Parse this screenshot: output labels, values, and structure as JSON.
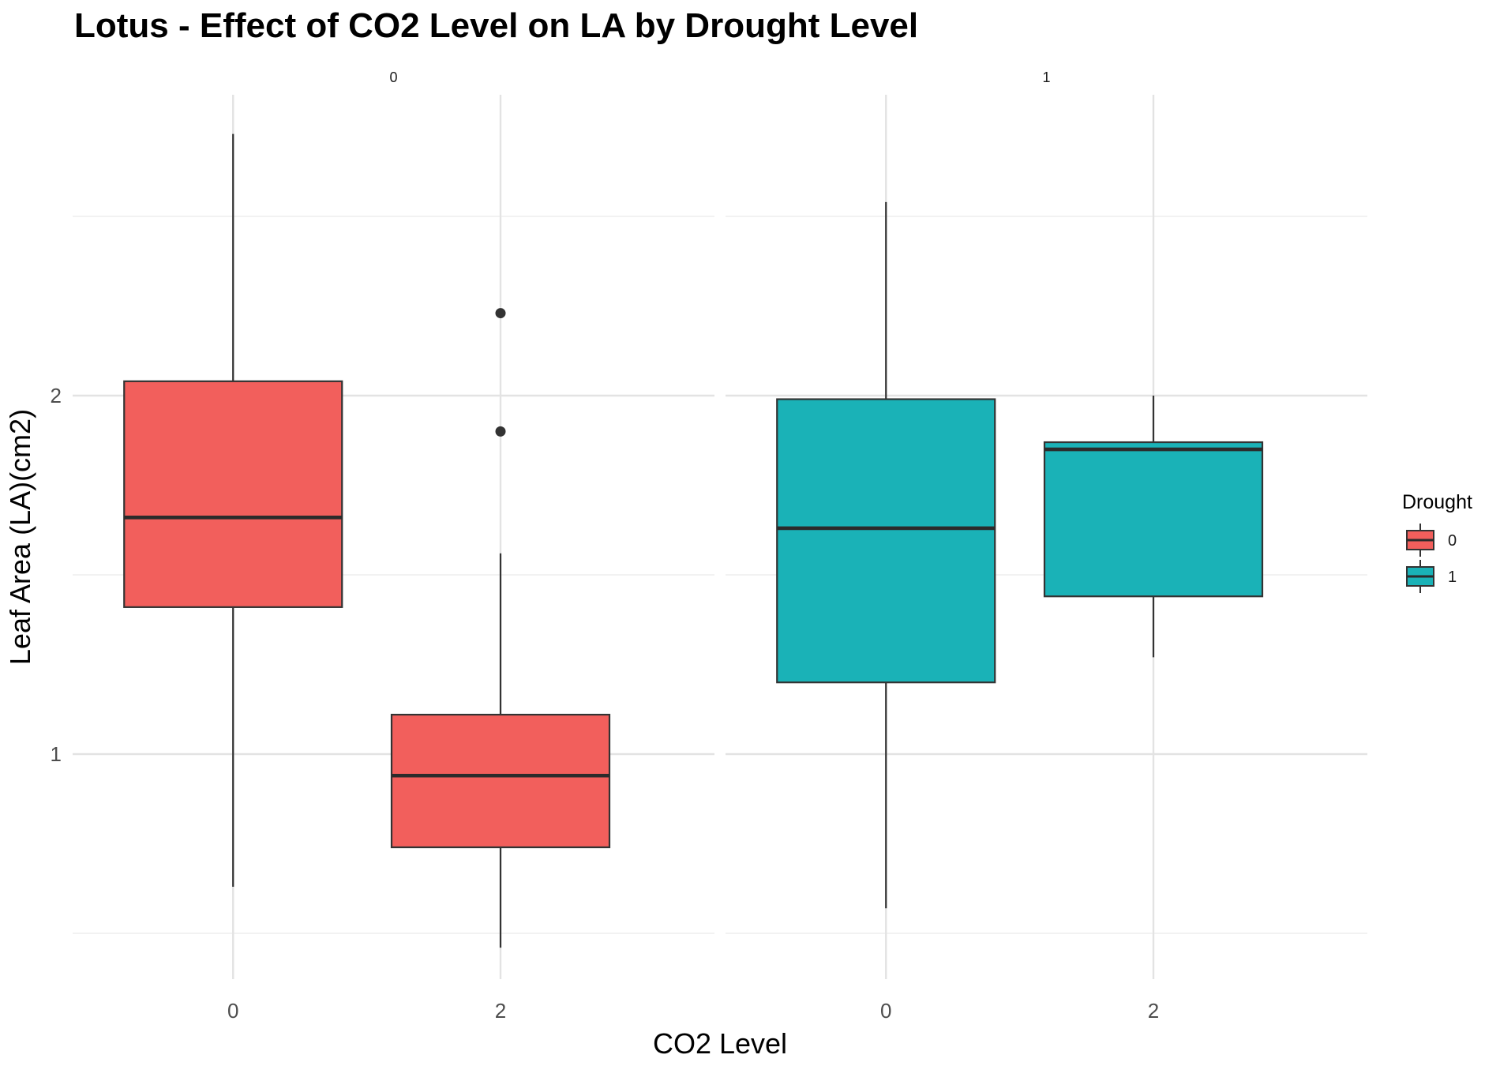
{
  "chart_data": {
    "type": "boxplot",
    "title": "Lotus - Effect of CO2 Level on LA by Drought Level",
    "xlabel": "CO2 Level",
    "ylabel": "Leaf Area (LA)(cm2)",
    "ylim": [
      0.4,
      3.2
    ],
    "yticks": [
      1,
      2
    ],
    "grid": true,
    "legend": {
      "title": "Drought",
      "placement": "right",
      "entries": [
        {
          "label": "0",
          "color": "#F25F5C"
        },
        {
          "label": "1",
          "color": "#1AB2B7"
        }
      ]
    },
    "facets": [
      {
        "label": "0",
        "drought": "0",
        "color": "#F25F5C",
        "categories": [
          "0",
          "2"
        ],
        "boxes": [
          {
            "x": "0",
            "whisker_low": 0.63,
            "q1": 1.41,
            "median": 1.66,
            "q3": 2.04,
            "whisker_high": 2.73,
            "outliers": []
          },
          {
            "x": "2",
            "whisker_low": 0.46,
            "q1": 0.74,
            "median": 0.94,
            "q3": 1.11,
            "whisker_high": 1.56,
            "outliers": [
              2.23,
              1.9
            ]
          }
        ]
      },
      {
        "label": "1",
        "drought": "1",
        "color": "#1AB2B7",
        "categories": [
          "0",
          "2"
        ],
        "boxes": [
          {
            "x": "0",
            "whisker_low": 0.57,
            "q1": 1.2,
            "median": 1.63,
            "q3": 1.99,
            "whisker_high": 2.54,
            "outliers": []
          },
          {
            "x": "2",
            "whisker_low": 1.27,
            "q1": 1.44,
            "median": 1.85,
            "q3": 1.87,
            "whisker_high": 2.0,
            "outliers": []
          }
        ]
      }
    ]
  }
}
